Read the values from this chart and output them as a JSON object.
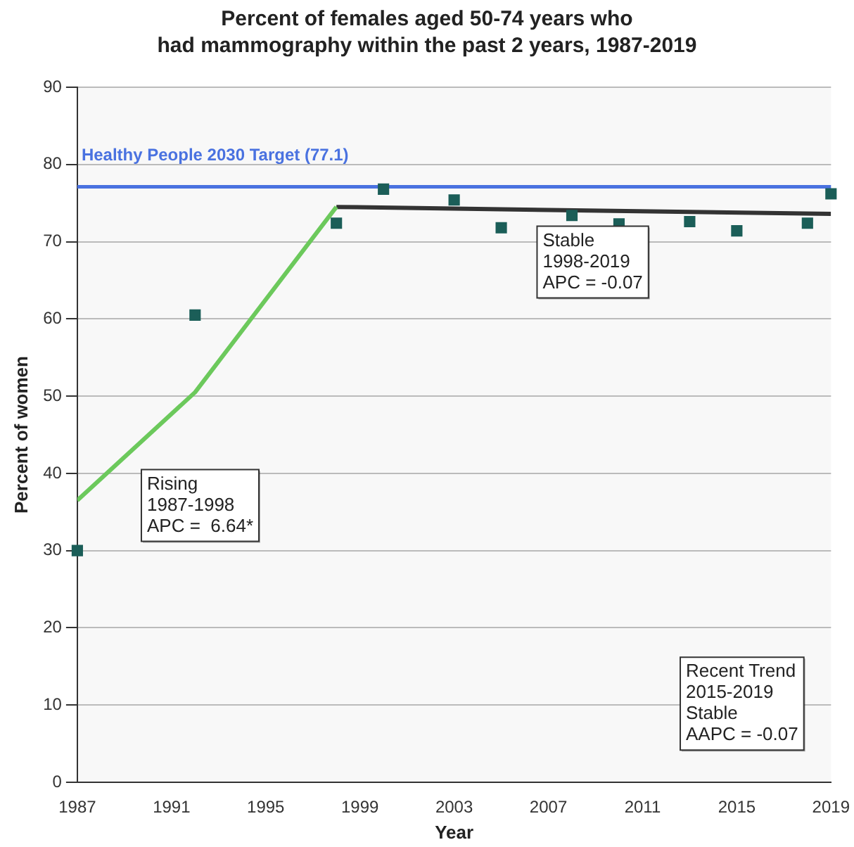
{
  "chart_data": {
    "type": "scatter",
    "title": "Percent of females aged 50-74 years who\nhad mammography within the past 2 years, 1987-2019",
    "xlabel": "Year",
    "ylabel": "Percent of women",
    "series": [
      {
        "marker": "square",
        "color": "#1b5e58",
        "x": [
          1987,
          1992,
          1998,
          2000,
          2003,
          2005,
          2008,
          2010,
          2013,
          2015,
          2018,
          2019
        ],
        "values": [
          30,
          60.5,
          72.4,
          76.8,
          75.4,
          71.8,
          73.4,
          72.3,
          72.6,
          71.4,
          72.4,
          76.2
        ]
      },
      {
        "type": "line",
        "marker": "none",
        "color": "#6cc95c",
        "x": [
          1987,
          1992,
          1998
        ],
        "values": [
          36.5,
          50.5,
          74.5
        ]
      },
      {
        "type": "line",
        "marker": "none",
        "color": "#333333",
        "x": [
          1998,
          2019
        ],
        "values": [
          74.5,
          73.6
        ]
      }
    ],
    "xlim": [
      1987,
      2019
    ],
    "xticks": [
      1987,
      1991,
      1995,
      1999,
      2003,
      2007,
      2011,
      2015,
      2019
    ],
    "ylim": [
      0,
      90
    ],
    "yticks": [
      0,
      10,
      20,
      30,
      40,
      50,
      60,
      70,
      80,
      90
    ],
    "grid": "y",
    "legend": false,
    "ref_lines": [
      {
        "axis": "y",
        "value": 77.1,
        "label": "Healthy People 2030 Target (77.1)",
        "color": "#4a72e0"
      }
    ],
    "annotations": [
      "Stable\n1998-2019\nAPC = -0.07",
      "Rising\n1987-1998\nAPC =  6.64*",
      "Recent Trend\n2015-2019\nStable\nAAPC = -0.07"
    ]
  }
}
